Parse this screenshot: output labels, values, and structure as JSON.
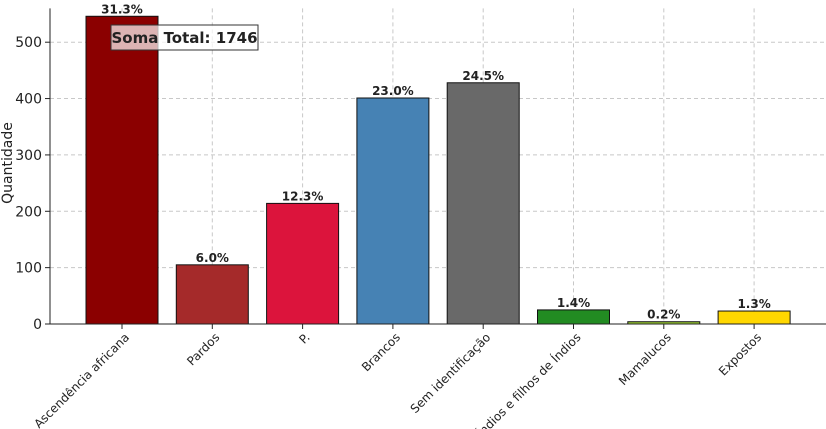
{
  "chart_data": {
    "type": "bar",
    "ylabel": "Quantidade",
    "ylim": [
      0,
      560
    ],
    "yticks": [
      0,
      100,
      200,
      300,
      400,
      500
    ],
    "grid": true,
    "categories": [
      "Ascendência africana",
      "Pardos",
      "P.",
      "Brancos",
      "Sem identificação",
      "Índios e filhos de Índios",
      "Mamalucos",
      "Expostos"
    ],
    "values": [
      546,
      105,
      214,
      401,
      428,
      25,
      4,
      23
    ],
    "percent_labels": [
      "31.3%",
      "6.0%",
      "12.3%",
      "23.0%",
      "24.5%",
      "1.4%",
      "0.2%",
      "1.3%"
    ],
    "colors": [
      "#8b0000",
      "#a52a2a",
      "#dc143c",
      "#4682b4",
      "#696969",
      "#228b22",
      "#9acd32",
      "#ffd700"
    ],
    "annotation": "Soma Total: 1746"
  }
}
